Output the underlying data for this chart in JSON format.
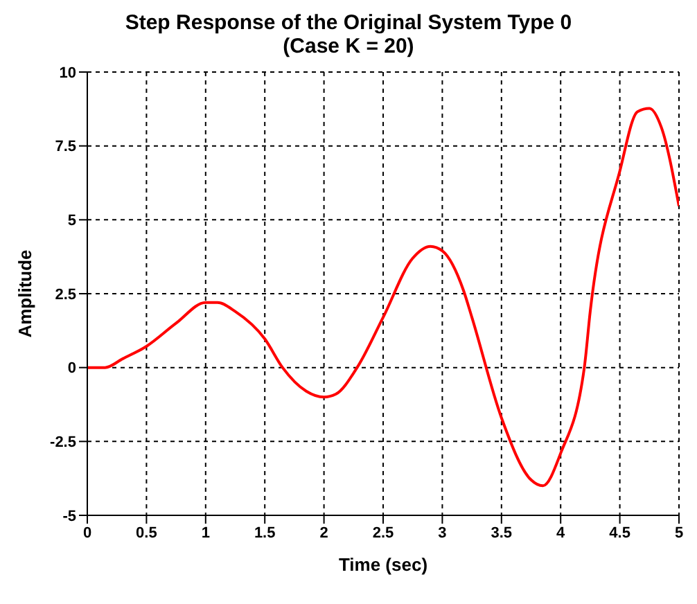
{
  "chart_data": {
    "type": "line",
    "title": "Step Response of the Original System Type 0",
    "subtitle": "(Case K = 20)",
    "xlabel": "Time (sec)",
    "ylabel": "Amplitude",
    "x": [
      0,
      0.15,
      0.3,
      0.5,
      0.75,
      1.0,
      1.1,
      1.25,
      1.5,
      1.65,
      1.85,
      2.0,
      2.1,
      2.28,
      2.5,
      2.75,
      2.9,
      3.0,
      3.18,
      3.25,
      3.5,
      3.75,
      3.85,
      4.0,
      4.2,
      4.25,
      4.5,
      4.65,
      4.75,
      4.85,
      5.0
    ],
    "series": [
      {
        "color": "#ff0000",
        "values": [
          0,
          0,
          0.3,
          0.72,
          1.5,
          2.2,
          2.2,
          1.9,
          0.97,
          0,
          -0.8,
          -1.0,
          -0.9,
          0,
          1.7,
          3.7,
          4.1,
          3.95,
          2.6,
          1.7,
          -1.7,
          -3.8,
          -4.0,
          -2.9,
          0,
          1.9,
          6.65,
          8.66,
          8.77,
          8.14,
          5.46
        ]
      }
    ],
    "xlim": [
      0,
      5
    ],
    "xticks": [
      0,
      0.5,
      1,
      1.5,
      2,
      2.5,
      3,
      3.5,
      4,
      4.5,
      5
    ],
    "ylim": [
      -5,
      10
    ],
    "yticks": [
      -5,
      -2.5,
      0,
      2.5,
      5,
      7.5,
      10
    ],
    "grid": true,
    "legend": false,
    "marker": "none",
    "line_style": "solid"
  }
}
